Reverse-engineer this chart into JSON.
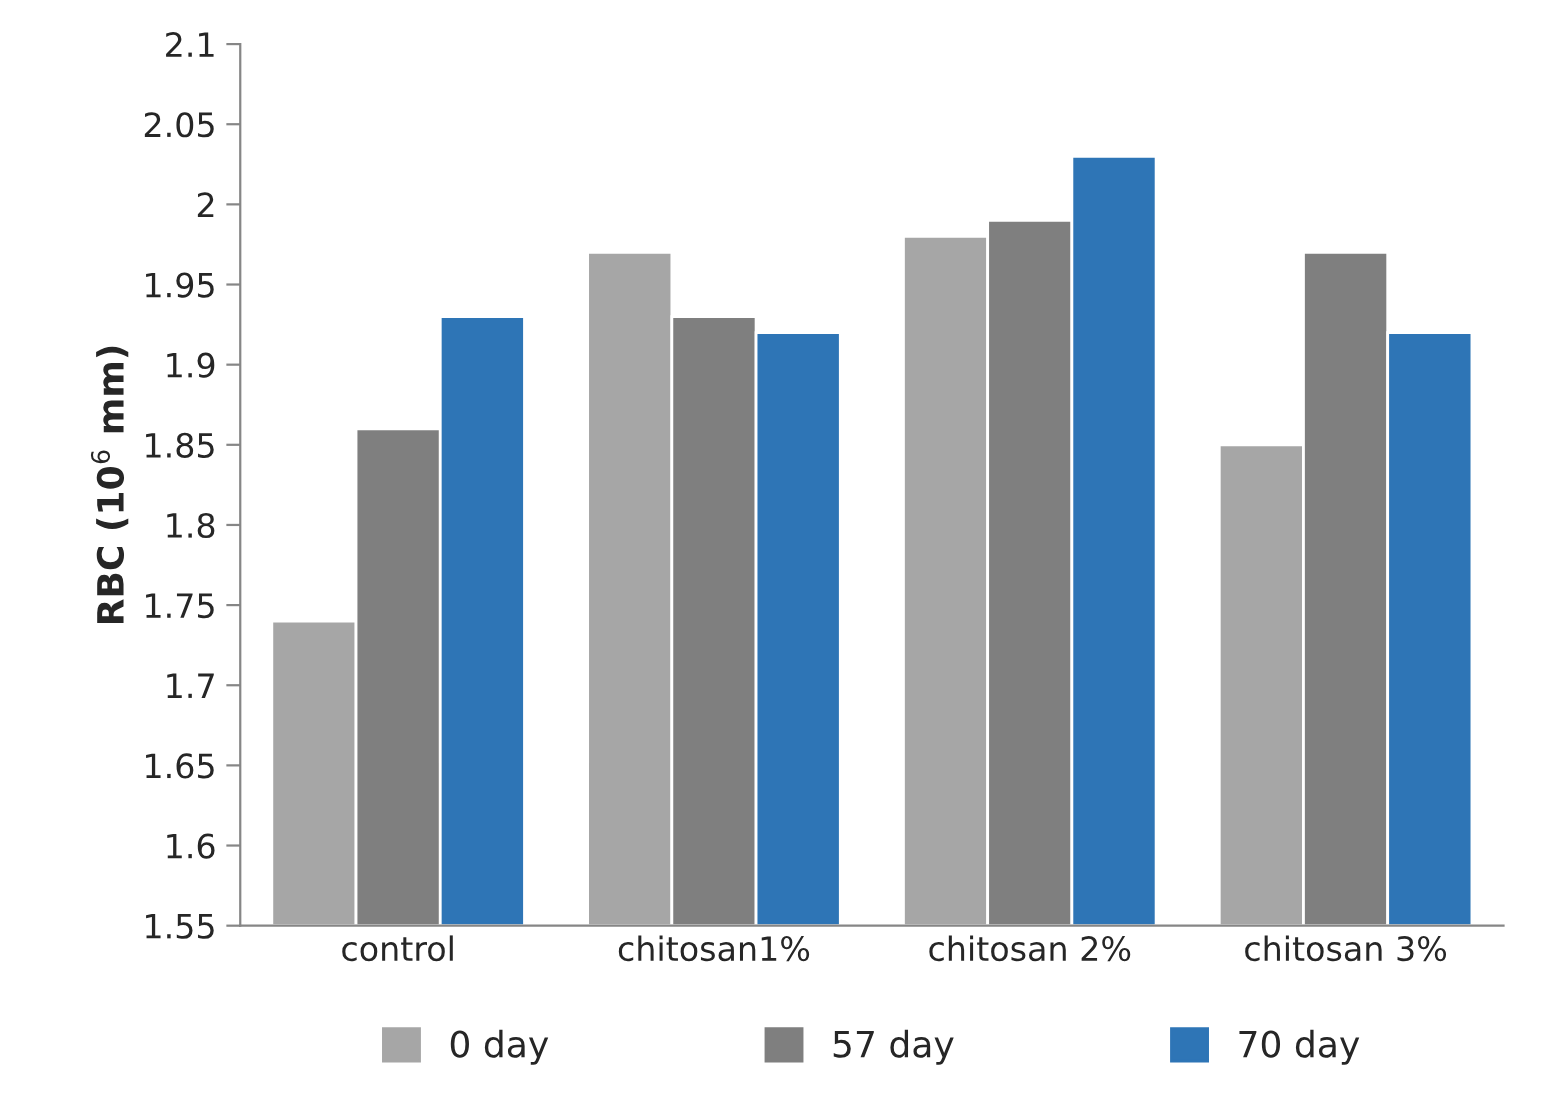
{
  "chart_data": {
    "type": "bar",
    "ylabel": "RBC (10$^{6}$ mm)",
    "categories": [
      "control",
      "chitosan1%",
      "chitosan 2%",
      "chitosan 3%"
    ],
    "series": [
      {
        "name": "0 day",
        "color": "#a6a6a6",
        "values": [
          1.74,
          1.97,
          1.98,
          1.85
        ]
      },
      {
        "name": "57 day",
        "color": "#7f7f7f",
        "values": [
          1.86,
          1.93,
          1.99,
          1.97
        ]
      },
      {
        "name": "70 day",
        "color": "#2e75b6",
        "values": [
          1.93,
          1.92,
          2.03,
          1.92
        ]
      }
    ],
    "ylim": [
      1.55,
      2.1
    ],
    "yticks": [
      1.55,
      1.6,
      1.65,
      1.7,
      1.75,
      1.8,
      1.85,
      1.9,
      1.95,
      2,
      2.05,
      2.1
    ],
    "grid": false,
    "legend": "bottom"
  }
}
